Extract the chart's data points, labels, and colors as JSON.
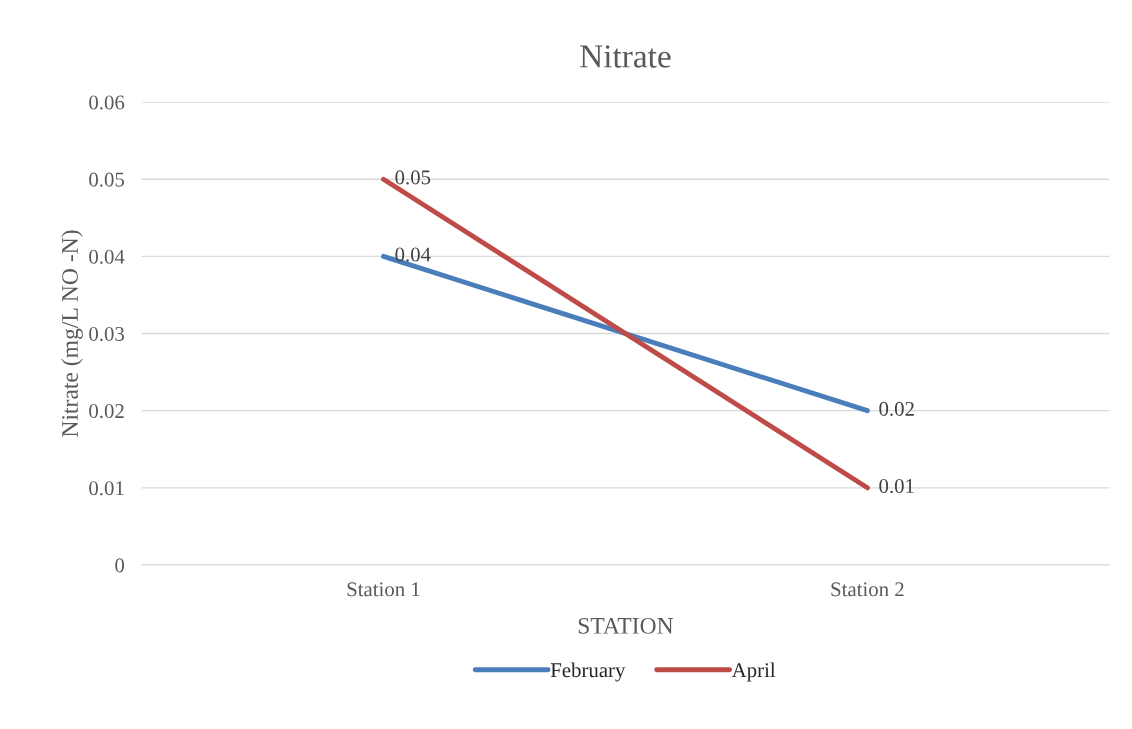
{
  "chart_data": {
    "type": "line",
    "title": "Nitrate",
    "xlabel": "STATION",
    "ylabel": "Nitrate (mg/L NO -N)",
    "categories": [
      "Station 1",
      "Station 2"
    ],
    "series": [
      {
        "name": "February",
        "color": "#4a7ebb",
        "values": [
          0.04,
          0.02
        ]
      },
      {
        "name": "April",
        "color": "#be4b48",
        "values": [
          0.05,
          0.01
        ]
      }
    ],
    "ylim": [
      0,
      0.06
    ],
    "yticks": [
      0,
      0.01,
      0.02,
      0.03,
      0.04,
      0.05,
      0.06
    ],
    "grid": "y",
    "legend": "bottom",
    "data_labels": true,
    "marker": "none",
    "line_style": "solid"
  }
}
